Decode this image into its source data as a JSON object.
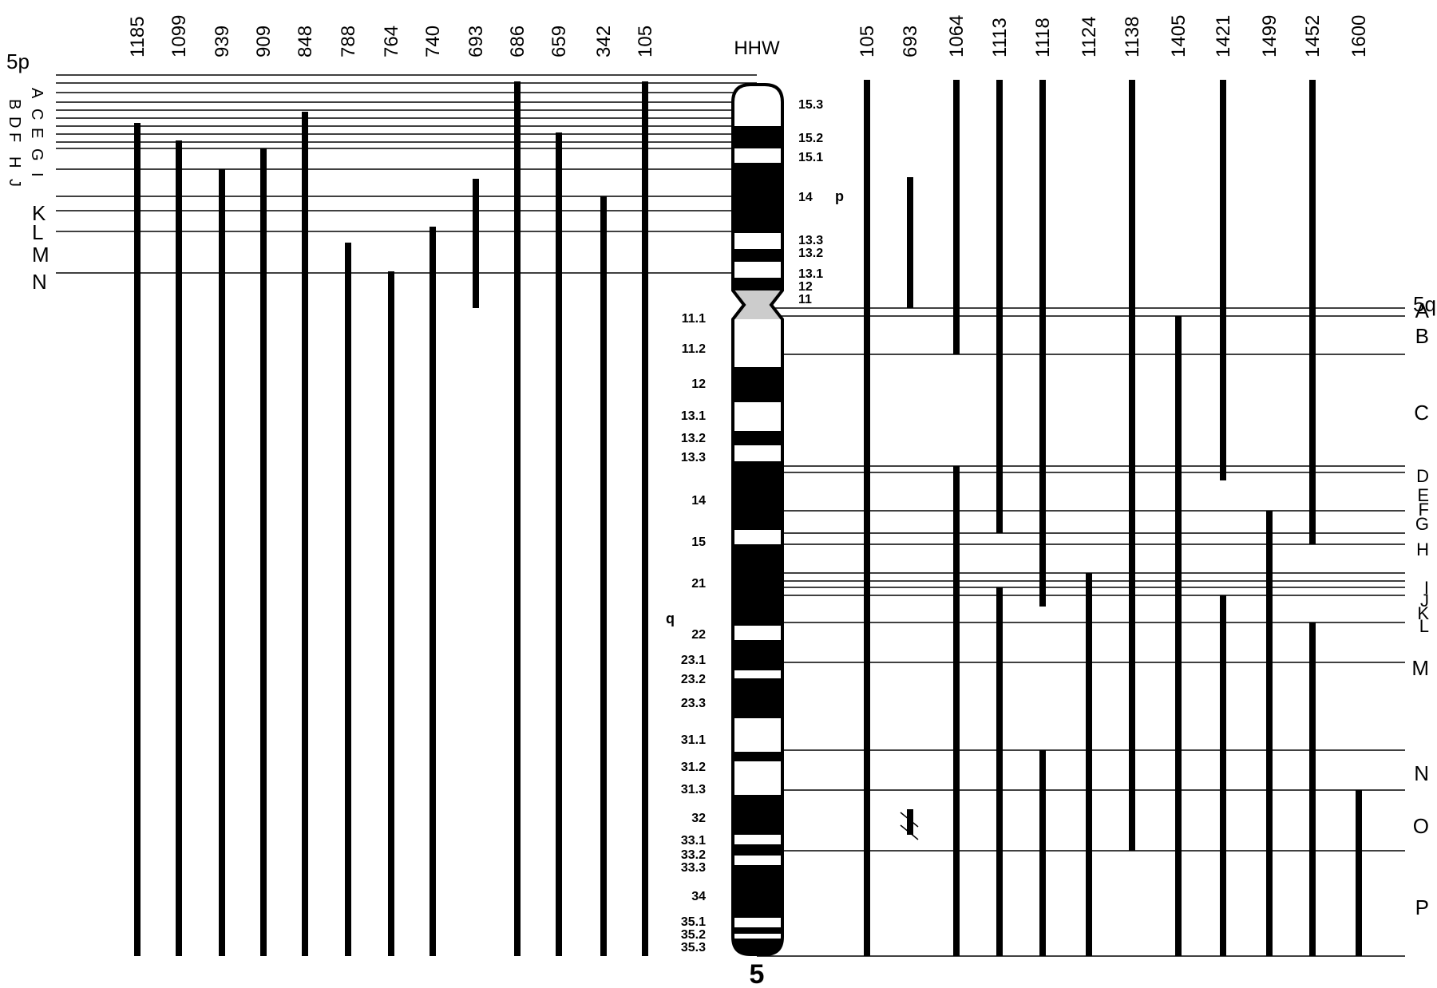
{
  "figure": {
    "chromosome_name": "HHW",
    "chromosome_number": "5",
    "arm_p_label": "5p",
    "arm_q_label": "5q",
    "p_symbol": "p",
    "q_symbol": "q"
  },
  "p_hybrids": [
    "1185",
    "1099",
    "939",
    "909",
    "848",
    "788",
    "764",
    "740",
    "693",
    "686",
    "659",
    "342",
    "105"
  ],
  "q_hybrids": [
    "105",
    "693",
    "1064",
    "1113",
    "1118",
    "1124",
    "1138",
    "1405",
    "1421",
    "1499",
    "1452",
    "1600"
  ],
  "p_regions": [
    "A",
    "B",
    "C",
    "D",
    "E",
    "F",
    "G",
    "H",
    "I",
    "J",
    "K",
    "L",
    "M",
    "N"
  ],
  "q_regions": [
    "A",
    "B",
    "C",
    "D",
    "E",
    "F",
    "G",
    "H",
    "I",
    "J",
    "K",
    "L",
    "M",
    "N",
    "O",
    "P"
  ],
  "p_bands": [
    "15.3",
    "15.2",
    "15.1",
    "14",
    "13.3",
    "13.2",
    "13.1",
    "12",
    "11"
  ],
  "q_bands": [
    "11.1",
    "11.2",
    "12",
    "13.1",
    "13.2",
    "13.3",
    "14",
    "15",
    "21",
    "22",
    "23.1",
    "23.2",
    "23.3",
    "31.1",
    "31.2",
    "31.3",
    "32",
    "33.1",
    "33.2",
    "33.3",
    "34",
    "35.1",
    "35.2",
    "35.3"
  ]
}
